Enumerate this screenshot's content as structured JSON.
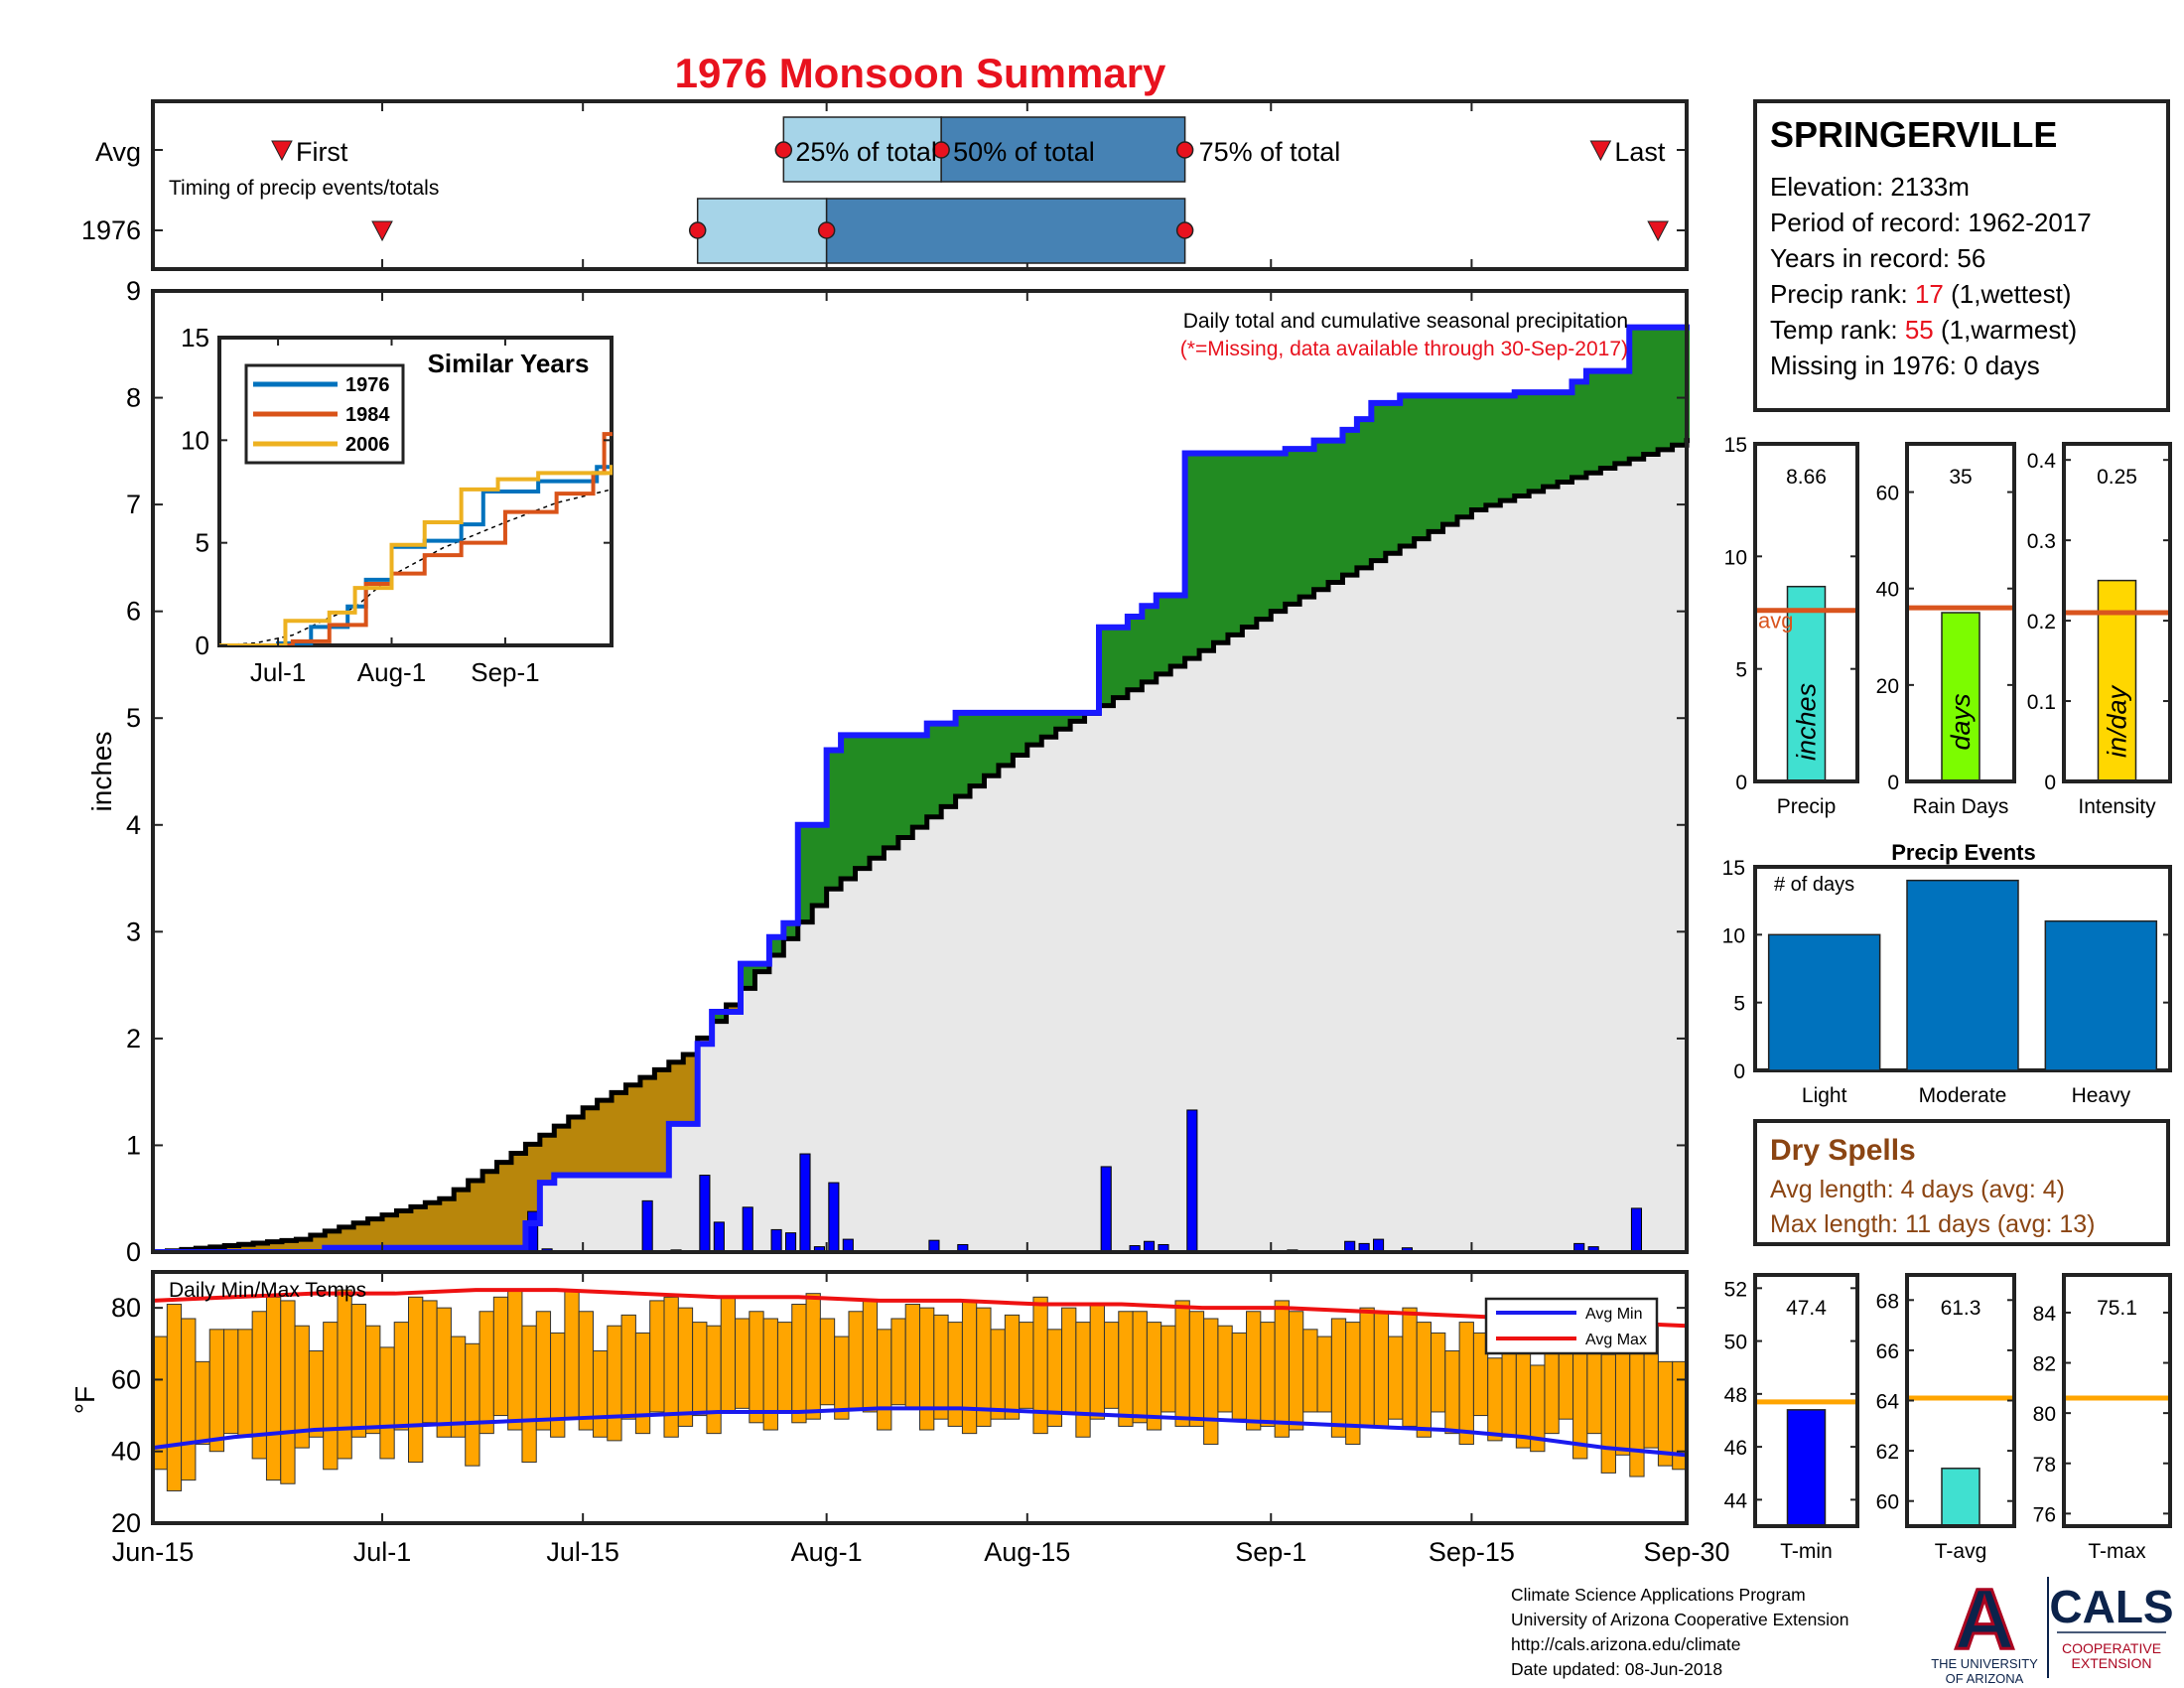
{
  "page": {
    "title": "1976 Monsoon Summary",
    "colors": {
      "title": "#e8121e",
      "highlight": "#e8121e",
      "observed_line": "#1a1aff",
      "avg_line": "#000000",
      "surplus_fill": "#228b22",
      "deficit_fill": "#b8860b",
      "avg_fill": "#e8e8e8",
      "daily_bars": "#0000ff",
      "temp_bars": "#ffa500",
      "avg_max_line": "#ee1111",
      "avg_min_line": "#1a1aee",
      "quartile_light": "#a6d4e8",
      "quartile_dark": "#4682b4",
      "marker": "#e8121e",
      "dry_spell_text": "#8b4513",
      "stat_avg_line": "#d9541e"
    }
  },
  "timing": {
    "row_avg_label": "Avg",
    "row_year_label": "1976",
    "caption": "Timing of precip events/totals",
    "first_label": "First",
    "last_label": "Last",
    "q25_label": "25% of total",
    "q50_label": "50% of total",
    "q75_label": "75% of total",
    "avg": {
      "first": "Jun-24",
      "q25": "Jul-29",
      "q50": "Aug-9",
      "q75": "Aug-26",
      "last": "Sep-24"
    },
    "year": {
      "first": "Jul-1",
      "q25": "Jul-23",
      "q50": "Aug-1",
      "q75": "Aug-26",
      "last": "Sep-28"
    }
  },
  "info": {
    "station": "SPRINGERVILLE",
    "elevation_label": "Elevation: 2133m",
    "period_label": "Period of record: 1962-2017",
    "years_label": "Years in record: 56",
    "precip_rank_prefix": "Precip rank: ",
    "precip_rank_value": "17",
    "precip_rank_suffix": " (1,wettest)",
    "temp_rank_prefix": "Temp rank: ",
    "temp_rank_value": "55",
    "temp_rank_suffix": " (1,warmest)",
    "missing_label": "Missing in 1976: 0 days"
  },
  "main_chart": {
    "note1": "Daily total and cumulative seasonal precipitation",
    "note2": "(*=Missing, data available through 30-Sep-2017)",
    "ylabel": "inches",
    "yticks": [
      "0",
      "1",
      "2",
      "3",
      "4",
      "5",
      "6",
      "7",
      "8",
      "9"
    ]
  },
  "date_axis": {
    "labels": [
      "Jun-15",
      "Jul-1",
      "Jul-15",
      "Aug-1",
      "Aug-15",
      "Sep-1",
      "Sep-15",
      "Sep-30"
    ]
  },
  "inset": {
    "title": "Similar Years",
    "yticks": [
      "0",
      "5",
      "10",
      "15"
    ],
    "xticks": [
      "Jul-1",
      "Aug-1",
      "Sep-1"
    ],
    "legend": [
      "1976",
      "1984",
      "2006"
    ]
  },
  "temp_chart": {
    "title": "Daily Min/Max Temps",
    "ylabel": "°F",
    "yticks": [
      "20",
      "40",
      "60",
      "80"
    ],
    "legend_min": "Avg Min",
    "legend_max": "Avg Max"
  },
  "stats": {
    "precip": {
      "value_label": "8.66",
      "unit": "inches",
      "xlabel": "Precip",
      "yticks": [
        "0",
        "5",
        "10",
        "15"
      ],
      "avg_label": "avg"
    },
    "raindays": {
      "value_label": "35",
      "unit": "days",
      "xlabel": "Rain Days",
      "yticks": [
        "0",
        "20",
        "40",
        "60"
      ]
    },
    "intensity": {
      "value_label": "0.25",
      "unit": "in/day",
      "xlabel": "Intensity",
      "yticks": [
        "0",
        "0.1",
        "0.2",
        "0.3",
        "0.4"
      ]
    }
  },
  "events": {
    "title": "Precip Events",
    "ylabel": "# of days",
    "yticks": [
      "0",
      "5",
      "10",
      "15"
    ],
    "labels": [
      "Light",
      "Moderate",
      "Heavy"
    ]
  },
  "dry": {
    "title": "Dry Spells",
    "avg_line": "Avg length: 4 days (avg: 4)",
    "max_line": "Max length: 11 days (avg: 13)"
  },
  "temp_stats": {
    "tmin": {
      "value_label": "47.4",
      "xlabel": "T-min",
      "yticks": [
        "44",
        "46",
        "48",
        "50",
        "52"
      ]
    },
    "tavg": {
      "value_label": "61.3",
      "xlabel": "T-avg",
      "yticks": [
        "60",
        "62",
        "64",
        "66",
        "68"
      ]
    },
    "tmax": {
      "value_label": "75.1",
      "xlabel": "T-max",
      "yticks": [
        "76",
        "78",
        "80",
        "82",
        "84"
      ]
    }
  },
  "footer": {
    "line1": "Climate Science Applications Program",
    "line2": "University of Arizona Cooperative Extension",
    "line3": "http://cals.arizona.edu/climate",
    "line4": " Date updated: 08-Jun-2018"
  },
  "logos": {
    "ua_letter": "A",
    "ua_line1": "THE UNIVERSITY",
    "ua_line2": "OF ARIZONA",
    "cals": "CALS",
    "cals_line1": "COOPERATIVE",
    "cals_line2": "EXTENSION"
  },
  "chart_data": [
    {
      "type": "area",
      "name": "cumulative_precip",
      "x_start": "Jun-15",
      "x_end": "Sep-30",
      "ylim": [
        0,
        9
      ],
      "observed_cumulative": [
        [
          "Jun-15",
          0
        ],
        [
          "Jun-26",
          0
        ],
        [
          "Jun-27",
          0.04
        ],
        [
          "Jul-10",
          0.04
        ],
        [
          "Jul-11",
          0.27
        ],
        [
          "Jul-12",
          0.65
        ],
        [
          "Jul-13",
          0.72
        ],
        [
          "Jul-20",
          0.72
        ],
        [
          "Jul-21",
          1.2
        ],
        [
          "Jul-22",
          1.2
        ],
        [
          "Jul-23",
          1.95
        ],
        [
          "Jul-24",
          2.25
        ],
        [
          "Jul-26",
          2.7
        ],
        [
          "Jul-28",
          2.95
        ],
        [
          "Jul-29",
          3.08
        ],
        [
          "Jul-30",
          4.0
        ],
        [
          "Aug-1",
          4.7
        ],
        [
          "Aug-2",
          4.84
        ],
        [
          "Aug-8",
          4.95
        ],
        [
          "Aug-10",
          5.05
        ],
        [
          "Aug-20",
          5.85
        ],
        [
          "Aug-22",
          5.95
        ],
        [
          "Aug-23",
          6.05
        ],
        [
          "Aug-24",
          6.15
        ],
        [
          "Aug-26",
          7.48
        ],
        [
          "Sep-2",
          7.52
        ],
        [
          "Sep-4",
          7.6
        ],
        [
          "Sep-6",
          7.7
        ],
        [
          "Sep-7",
          7.8
        ],
        [
          "Sep-8",
          7.95
        ],
        [
          "Sep-10",
          8.02
        ],
        [
          "Sep-18",
          8.05
        ],
        [
          "Sep-22",
          8.15
        ],
        [
          "Sep-23",
          8.25
        ],
        [
          "Sep-26",
          8.66
        ],
        [
          "Sep-30",
          8.66
        ]
      ],
      "average_cumulative": [
        [
          "Jun-15",
          0
        ],
        [
          "Jun-25",
          0.12
        ],
        [
          "Jul-5",
          0.5
        ],
        [
          "Jul-15",
          1.35
        ],
        [
          "Jul-22",
          1.85
        ],
        [
          "Aug-1",
          3.4
        ],
        [
          "Aug-15",
          4.75
        ],
        [
          "Sep-1",
          6.0
        ],
        [
          "Sep-15",
          6.95
        ],
        [
          "Sep-30",
          7.6
        ]
      ],
      "daily_precip": [
        [
          "Jun-27",
          0.04
        ],
        [
          "Jul-11",
          0.38
        ],
        [
          "Jul-12",
          0.03
        ],
        [
          "Jul-19",
          0.48
        ],
        [
          "Jul-21",
          0.02
        ],
        [
          "Jul-23",
          0.72
        ],
        [
          "Jul-24",
          0.28
        ],
        [
          "Jul-26",
          0.42
        ],
        [
          "Jul-28",
          0.21
        ],
        [
          "Jul-29",
          0.18
        ],
        [
          "Jul-30",
          0.92
        ],
        [
          "Jul-31",
          0.05
        ],
        [
          "Aug-1",
          0.65
        ],
        [
          "Aug-2",
          0.12
        ],
        [
          "Aug-8",
          0.11
        ],
        [
          "Aug-10",
          0.07
        ],
        [
          "Aug-20",
          0.8
        ],
        [
          "Aug-22",
          0.06
        ],
        [
          "Aug-23",
          0.1
        ],
        [
          "Aug-24",
          0.07
        ],
        [
          "Aug-26",
          1.33
        ],
        [
          "Sep-2",
          0.02
        ],
        [
          "Sep-6",
          0.1
        ],
        [
          "Sep-7",
          0.08
        ],
        [
          "Sep-8",
          0.12
        ],
        [
          "Sep-10",
          0.04
        ],
        [
          "Sep-22",
          0.08
        ],
        [
          "Sep-23",
          0.05
        ],
        [
          "Sep-26",
          0.41
        ]
      ]
    },
    {
      "type": "line",
      "name": "similar_years",
      "title": "Similar Years",
      "ylim": [
        0,
        15
      ],
      "series": [
        {
          "name": "1976",
          "values": [
            [
              "Jun-15",
              0
            ],
            [
              "Jul-1",
              0.1
            ],
            [
              "Jul-10",
              0.9
            ],
            [
              "Jul-20",
              1.9
            ],
            [
              "Jul-25",
              3.2
            ],
            [
              "Aug-1",
              4.8
            ],
            [
              "Aug-10",
              5.1
            ],
            [
              "Aug-20",
              5.9
            ],
            [
              "Aug-26",
              7.5
            ],
            [
              "Sep-10",
              8.0
            ],
            [
              "Sep-26",
              8.7
            ],
            [
              "Sep-30",
              8.7
            ]
          ]
        },
        {
          "name": "1984",
          "values": [
            [
              "Jun-15",
              0
            ],
            [
              "Jul-5",
              0.2
            ],
            [
              "Jul-15",
              1.0
            ],
            [
              "Jul-25",
              3.0
            ],
            [
              "Aug-1",
              3.5
            ],
            [
              "Aug-10",
              4.4
            ],
            [
              "Aug-20",
              5.0
            ],
            [
              "Sep-1",
              6.5
            ],
            [
              "Sep-15",
              7.4
            ],
            [
              "Sep-25",
              8.4
            ],
            [
              "Sep-28",
              10.3
            ],
            [
              "Sep-30",
              10.3
            ]
          ]
        },
        {
          "name": "2006",
          "values": [
            [
              "Jun-15",
              0
            ],
            [
              "Jul-3",
              1.2
            ],
            [
              "Jul-15",
              1.6
            ],
            [
              "Jul-22",
              2.8
            ],
            [
              "Aug-1",
              4.9
            ],
            [
              "Aug-10",
              6.0
            ],
            [
              "Aug-20",
              7.6
            ],
            [
              "Aug-30",
              8.1
            ],
            [
              "Sep-10",
              8.4
            ],
            [
              "Sep-30",
              8.7
            ]
          ]
        }
      ]
    },
    {
      "type": "bar",
      "name": "daily_temps",
      "title": "Daily Min/Max Temps",
      "ylim": [
        20,
        90
      ],
      "x_start": "Jun-15",
      "x_end": "Sep-30",
      "tmax": [
        72,
        81,
        77,
        65,
        74,
        74,
        74,
        79,
        83,
        82,
        75,
        68,
        76,
        85,
        81,
        75,
        69,
        76,
        83,
        82,
        80,
        72,
        70,
        79,
        83,
        85,
        75,
        79,
        73,
        85,
        79,
        68,
        75,
        78,
        73,
        82,
        83,
        80,
        76,
        75,
        83,
        77,
        79,
        77,
        76,
        81,
        84,
        77,
        72,
        79,
        82,
        74,
        77,
        81,
        80,
        78,
        76,
        82,
        80,
        74,
        78,
        76,
        83,
        74,
        80,
        76,
        81,
        76,
        79,
        79,
        76,
        75,
        82,
        79,
        77,
        75,
        73,
        79,
        76,
        82,
        79,
        74,
        72,
        77,
        76,
        80,
        79,
        72,
        80,
        76,
        73,
        68,
        76,
        73,
        66,
        76,
        73,
        64,
        73,
        75,
        77,
        69,
        67,
        74,
        72,
        75,
        65,
        65
      ],
      "tmin": [
        35,
        29,
        32,
        42,
        40,
        45,
        44,
        38,
        32,
        31,
        41,
        44,
        35,
        38,
        44,
        45,
        38,
        46,
        37,
        48,
        44,
        44,
        36,
        45,
        50,
        46,
        37,
        46,
        44,
        49,
        46,
        44,
        43,
        49,
        45,
        51,
        44,
        47,
        50,
        45,
        51,
        52,
        48,
        46,
        51,
        48,
        49,
        53,
        49,
        52,
        51,
        46,
        53,
        52,
        46,
        49,
        47,
        45,
        47,
        49,
        49,
        52,
        45,
        47,
        51,
        44,
        49,
        52,
        47,
        48,
        46,
        51,
        47,
        47,
        42,
        51,
        49,
        46,
        47,
        44,
        46,
        51,
        51,
        44,
        42,
        47,
        47,
        49,
        47,
        44,
        51,
        45,
        42,
        50,
        43,
        44,
        41,
        40,
        45,
        49,
        38,
        45,
        34,
        39,
        33,
        41,
        36,
        35
      ],
      "avg_max": [
        82,
        83,
        84,
        84,
        85,
        85,
        84,
        83,
        83,
        82,
        82,
        81,
        81,
        80,
        80,
        79,
        78,
        77,
        76,
        75
      ],
      "avg_min": [
        41,
        44,
        46,
        47,
        48,
        49,
        50,
        51,
        51,
        52,
        52,
        51,
        50,
        49,
        48,
        47,
        46,
        44,
        41,
        39
      ]
    },
    {
      "type": "bar",
      "name": "season_totals",
      "categories": [
        "Precip",
        "Rain Days",
        "Intensity"
      ],
      "values": [
        8.66,
        35,
        0.25
      ],
      "averages": [
        7.6,
        36,
        0.21
      ]
    },
    {
      "type": "bar",
      "name": "precip_events",
      "title": "Precip Events",
      "ylabel": "# of days",
      "categories": [
        "Light",
        "Moderate",
        "Heavy"
      ],
      "values": [
        10,
        14,
        11
      ],
      "ylim": [
        0,
        15
      ]
    },
    {
      "type": "bar",
      "name": "season_temps",
      "categories": [
        "T-min",
        "T-avg",
        "T-max"
      ],
      "values": [
        47.4,
        61.3,
        75.1
      ],
      "averages": [
        47.7,
        64.1,
        80.6
      ]
    }
  ]
}
